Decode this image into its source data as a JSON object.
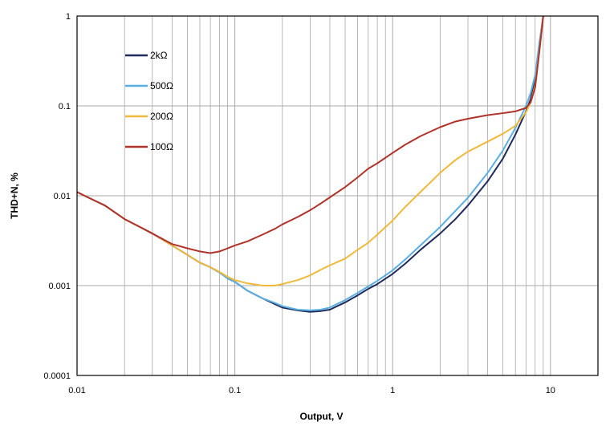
{
  "chart_data": {
    "type": "line",
    "xscale": "log",
    "yscale": "log",
    "xlim": [
      0.01,
      20
    ],
    "ylim": [
      0.0001,
      1
    ],
    "xlabel": "Output, V",
    "ylabel": "THD+N, %",
    "grid": true,
    "legend_position": "upper-left inside plot",
    "xticks": [
      0.01,
      0.1,
      1,
      10
    ],
    "xtick_labels": [
      "0.01",
      "0.1",
      "1",
      "10"
    ],
    "yticks": [
      1,
      0.1,
      0.01,
      0.001,
      0.0001
    ],
    "ytick_labels": [
      "1",
      "0.1",
      "0.01",
      "0.001",
      "0.0001"
    ],
    "series": [
      {
        "name": "2kΩ",
        "color": "#1f2a5a",
        "x": [
          0.01,
          0.012,
          0.015,
          0.02,
          0.025,
          0.03,
          0.04,
          0.05,
          0.06,
          0.07,
          0.08,
          0.09,
          0.1,
          0.12,
          0.15,
          0.18,
          0.2,
          0.25,
          0.3,
          0.35,
          0.4,
          0.5,
          0.6,
          0.7,
          0.8,
          1.0,
          1.2,
          1.5,
          2.0,
          2.5,
          3.0,
          4.0,
          5.0,
          6.0,
          7.0,
          7.5,
          8.0,
          8.5,
          9.0
        ],
        "y": [
          0.011,
          0.0094,
          0.0078,
          0.0055,
          0.0045,
          0.0038,
          0.0028,
          0.0022,
          0.0018,
          0.0016,
          0.0014,
          0.0012,
          0.0011,
          0.00088,
          0.00072,
          0.00062,
          0.00057,
          0.00053,
          0.00051,
          0.00052,
          0.00054,
          0.00065,
          0.00078,
          0.00092,
          0.00104,
          0.00135,
          0.00175,
          0.0025,
          0.0038,
          0.0055,
          0.0078,
          0.0145,
          0.026,
          0.048,
          0.087,
          0.12,
          0.2,
          0.45,
          1.1
        ]
      },
      {
        "name": "500Ω",
        "color": "#5aaee0",
        "x": [
          0.01,
          0.012,
          0.015,
          0.02,
          0.025,
          0.03,
          0.04,
          0.05,
          0.06,
          0.07,
          0.08,
          0.09,
          0.1,
          0.12,
          0.15,
          0.18,
          0.2,
          0.25,
          0.3,
          0.35,
          0.4,
          0.5,
          0.6,
          0.7,
          0.8,
          1.0,
          1.2,
          1.5,
          2.0,
          2.5,
          3.0,
          4.0,
          5.0,
          6.0,
          7.0,
          7.5,
          8.0,
          8.5,
          9.0
        ],
        "y": [
          0.011,
          0.0094,
          0.0078,
          0.0055,
          0.0045,
          0.0038,
          0.0028,
          0.0022,
          0.0018,
          0.0016,
          0.0014,
          0.0012,
          0.0011,
          0.00088,
          0.00072,
          0.00064,
          0.00059,
          0.00054,
          0.00053,
          0.00054,
          0.00057,
          0.00069,
          0.00083,
          0.00098,
          0.00113,
          0.00148,
          0.00195,
          0.0028,
          0.0045,
          0.0068,
          0.0095,
          0.018,
          0.032,
          0.057,
          0.1,
          0.14,
          0.22,
          0.5,
          1.1
        ]
      },
      {
        "name": "200Ω",
        "color": "#f0b83a",
        "x": [
          0.01,
          0.012,
          0.015,
          0.02,
          0.025,
          0.03,
          0.04,
          0.05,
          0.06,
          0.07,
          0.08,
          0.09,
          0.1,
          0.12,
          0.15,
          0.18,
          0.2,
          0.25,
          0.3,
          0.35,
          0.4,
          0.5,
          0.6,
          0.7,
          0.8,
          1.0,
          1.2,
          1.5,
          2.0,
          2.5,
          3.0,
          4.0,
          5.0,
          6.0,
          7.0,
          7.5,
          8.0,
          8.5,
          9.0
        ],
        "y": [
          0.011,
          0.0094,
          0.0078,
          0.0055,
          0.0045,
          0.0038,
          0.0028,
          0.0022,
          0.0018,
          0.0016,
          0.00142,
          0.00125,
          0.00115,
          0.00106,
          0.001,
          0.001,
          0.00104,
          0.00115,
          0.0013,
          0.0015,
          0.00168,
          0.002,
          0.0025,
          0.003,
          0.0037,
          0.0053,
          0.0075,
          0.011,
          0.018,
          0.025,
          0.031,
          0.04,
          0.049,
          0.06,
          0.085,
          0.11,
          0.17,
          0.4,
          1.1
        ]
      },
      {
        "name": "100Ω",
        "color": "#b0332a",
        "x": [
          0.01,
          0.012,
          0.015,
          0.02,
          0.025,
          0.03,
          0.04,
          0.05,
          0.06,
          0.07,
          0.08,
          0.09,
          0.1,
          0.12,
          0.15,
          0.18,
          0.2,
          0.25,
          0.3,
          0.35,
          0.4,
          0.5,
          0.6,
          0.7,
          0.8,
          1.0,
          1.2,
          1.5,
          2.0,
          2.5,
          3.0,
          4.0,
          5.0,
          6.0,
          7.0,
          7.5,
          8.0,
          8.5,
          9.0
        ],
        "y": [
          0.011,
          0.0094,
          0.0078,
          0.0055,
          0.0045,
          0.0038,
          0.0029,
          0.0026,
          0.0024,
          0.0023,
          0.0024,
          0.0026,
          0.0028,
          0.0031,
          0.0037,
          0.0043,
          0.0048,
          0.0058,
          0.0069,
          0.0082,
          0.0096,
          0.0125,
          0.016,
          0.02,
          0.023,
          0.03,
          0.037,
          0.046,
          0.058,
          0.067,
          0.072,
          0.079,
          0.083,
          0.087,
          0.095,
          0.11,
          0.16,
          0.4,
          1.1
        ]
      }
    ]
  }
}
